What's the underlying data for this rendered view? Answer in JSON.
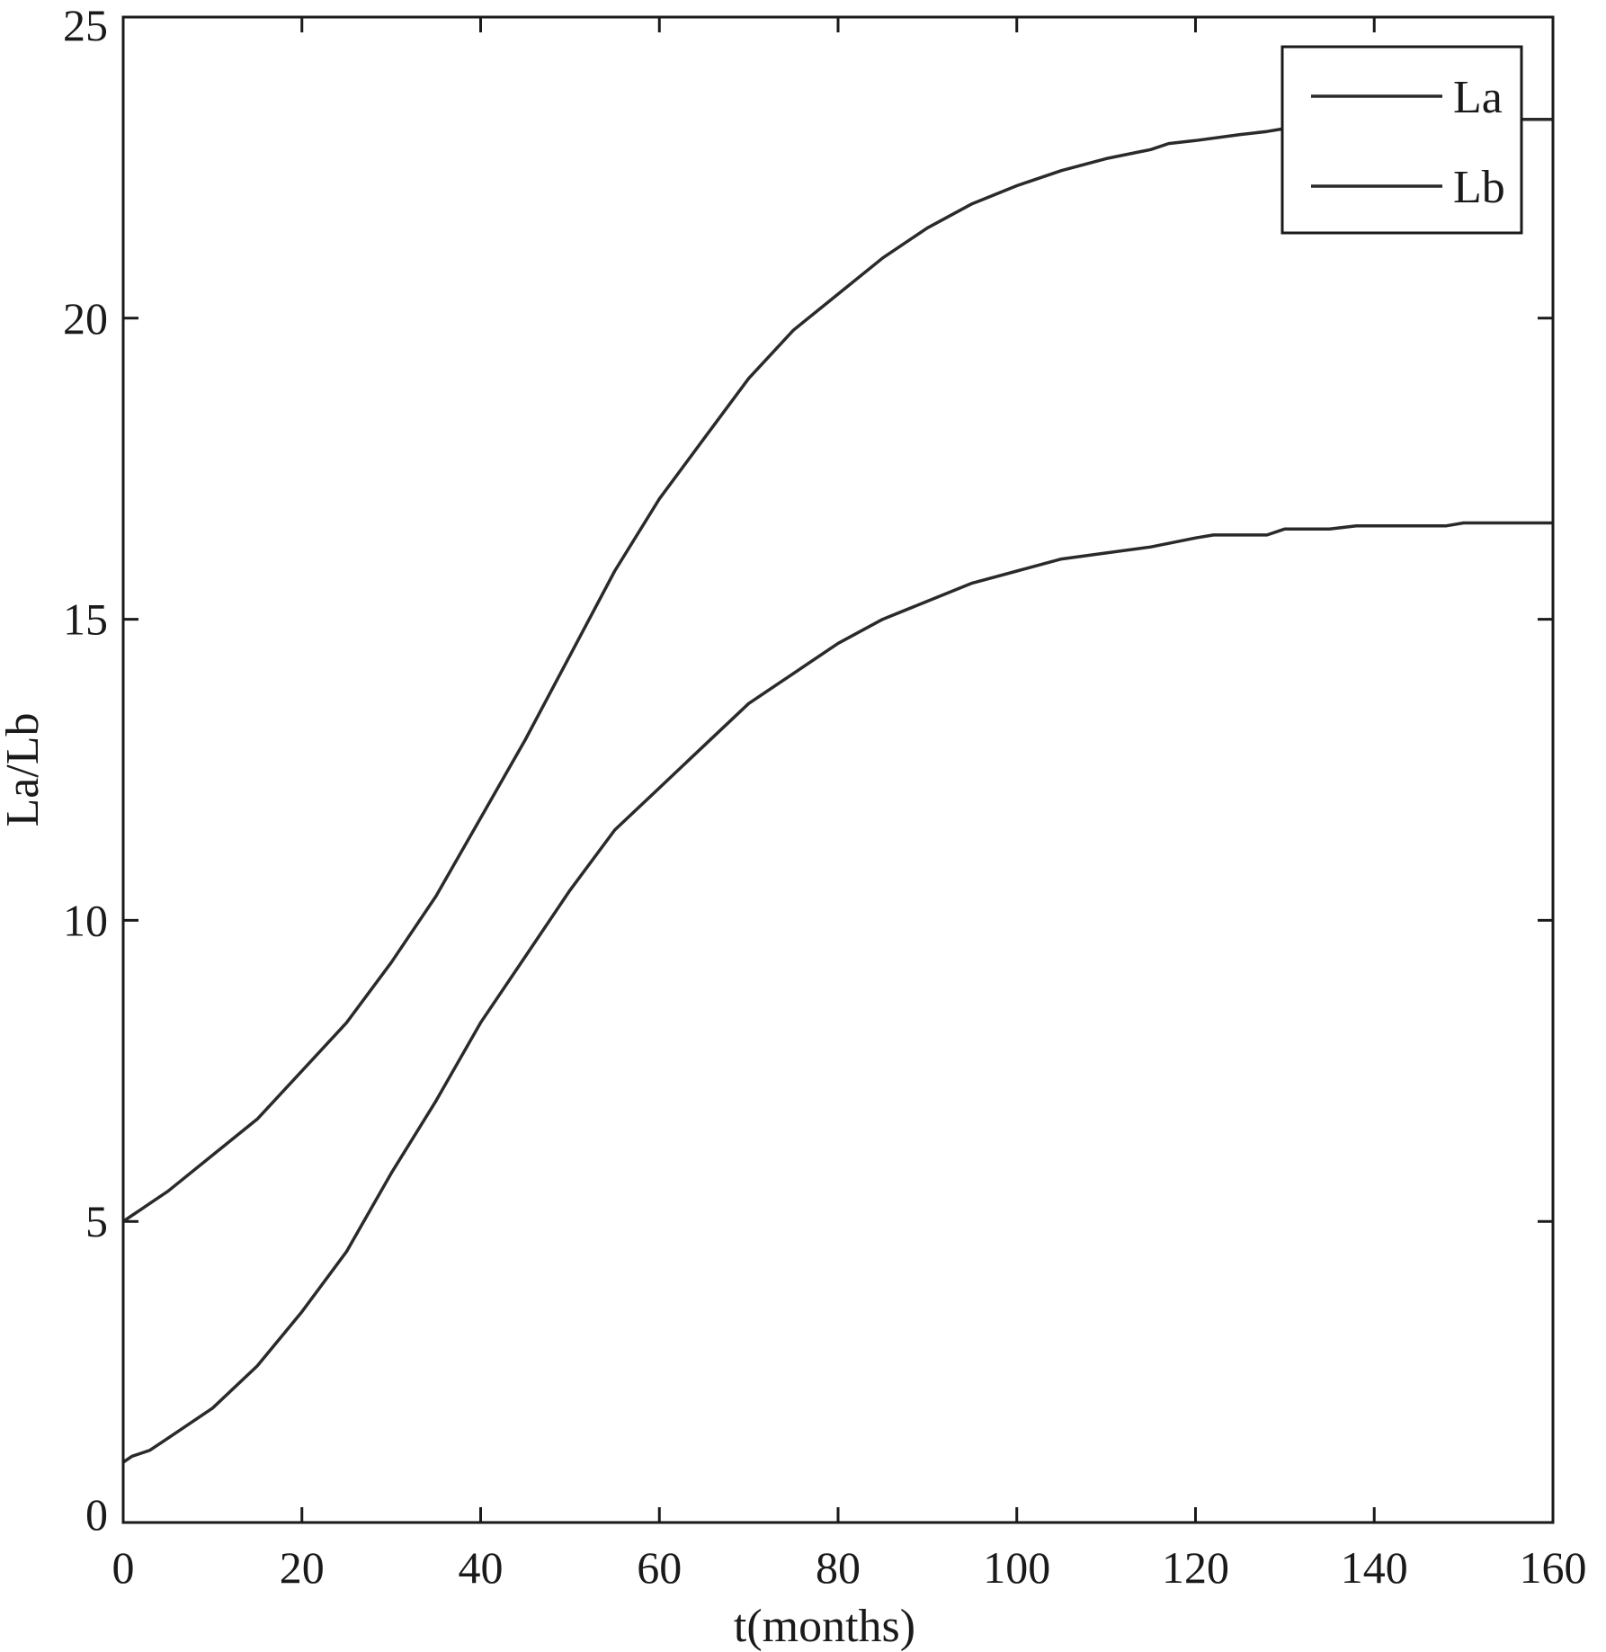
{
  "chart_data": {
    "type": "line",
    "title": "",
    "xlabel": "t(months)",
    "ylabel": "La/Lb",
    "xlim": [
      0,
      160
    ],
    "ylim": [
      0,
      25
    ],
    "xticks": [
      0,
      20,
      40,
      60,
      80,
      100,
      120,
      140,
      160
    ],
    "yticks": [
      0,
      5,
      10,
      15,
      20,
      25
    ],
    "grid": false,
    "legend_position": "top-right",
    "colors": {
      "line": "#2a2a2a",
      "axis": "#1a1a1a",
      "background": "#ffffff"
    },
    "series": [
      {
        "name": "La",
        "x": [
          0,
          1,
          2,
          3,
          5,
          10,
          15,
          20,
          25,
          30,
          35,
          40,
          45,
          50,
          55,
          60,
          65,
          70,
          75,
          80,
          85,
          90,
          95,
          100,
          105,
          110,
          115,
          117,
          120,
          125,
          128,
          130,
          135,
          140,
          145,
          150,
          155,
          160
        ],
        "y": [
          5.0,
          5.1,
          5.2,
          5.3,
          5.5,
          6.1,
          6.7,
          7.5,
          8.3,
          9.3,
          10.4,
          11.7,
          13.0,
          14.4,
          15.8,
          17.0,
          18.0,
          19.0,
          19.8,
          20.4,
          21.0,
          21.5,
          21.9,
          22.2,
          22.45,
          22.65,
          22.8,
          22.9,
          22.95,
          23.05,
          23.1,
          23.15,
          23.2,
          23.25,
          23.3,
          23.3,
          23.3,
          23.3
        ]
      },
      {
        "name": "Lb",
        "x": [
          0,
          1,
          2,
          3,
          5,
          10,
          15,
          20,
          25,
          30,
          35,
          40,
          45,
          50,
          55,
          60,
          65,
          70,
          75,
          80,
          85,
          90,
          95,
          100,
          105,
          110,
          115,
          120,
          122,
          125,
          128,
          130,
          135,
          138,
          145,
          148,
          150,
          155,
          160
        ],
        "y": [
          1.0,
          1.1,
          1.15,
          1.2,
          1.4,
          1.9,
          2.6,
          3.5,
          4.5,
          5.8,
          7.0,
          8.3,
          9.4,
          10.5,
          11.5,
          12.2,
          12.9,
          13.6,
          14.1,
          14.6,
          15.0,
          15.3,
          15.6,
          15.8,
          16.0,
          16.1,
          16.2,
          16.35,
          16.4,
          16.4,
          16.4,
          16.5,
          16.5,
          16.55,
          16.55,
          16.55,
          16.6,
          16.6,
          16.6
        ]
      }
    ]
  }
}
